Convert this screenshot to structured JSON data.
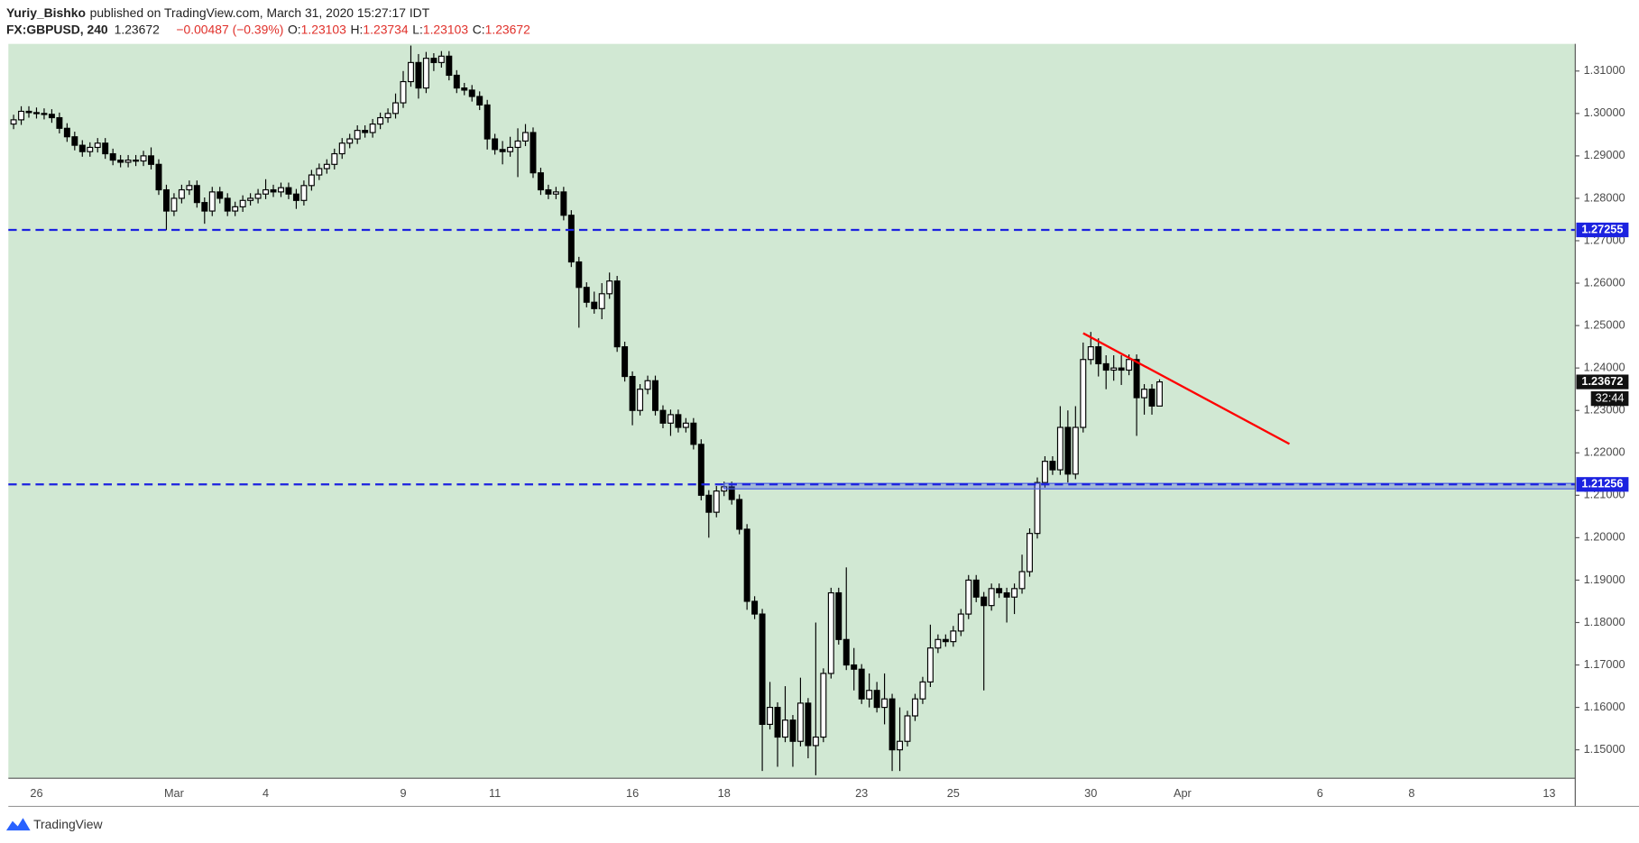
{
  "header": {
    "author": "Yuriy_Bishko",
    "published": "published on TradingView.com, March 31, 2020 15:27:17 IDT",
    "symbol": "FX:GBPUSD, 240",
    "last": "1.23672",
    "change": "−0.00487 (−0.39%)",
    "ohlc": [
      {
        "label": "O:",
        "value": "1.23103"
      },
      {
        "label": "H:",
        "value": "1.23734"
      },
      {
        "label": "L:",
        "value": "1.23103"
      },
      {
        "label": "C:",
        "value": "1.23672"
      }
    ]
  },
  "footer": {
    "brand": "TradingView"
  },
  "chart_data": {
    "type": "candlestick",
    "categories": [
      null,
      null,
      null,
      "26",
      null,
      null,
      null,
      null,
      null,
      null,
      null,
      null,
      null,
      null,
      null,
      null,
      null,
      null,
      null,
      null,
      null,
      "Mar",
      null,
      null,
      null,
      null,
      null,
      null,
      null,
      null,
      null,
      null,
      null,
      "4",
      null,
      null,
      null,
      null,
      null,
      null,
      null,
      null,
      null,
      null,
      null,
      null,
      null,
      null,
      null,
      null,
      null,
      "9",
      null,
      null,
      null,
      null,
      null,
      null,
      null,
      null,
      null,
      null,
      null,
      "11",
      null,
      null,
      null,
      null,
      null,
      null,
      null,
      null,
      null,
      null,
      null,
      null,
      null,
      null,
      null,
      null,
      null,
      "16",
      null,
      null,
      null,
      null,
      null,
      null,
      null,
      null,
      null,
      null,
      null,
      "18",
      null,
      null,
      null,
      null,
      null,
      null,
      null,
      null,
      null,
      null,
      null,
      null,
      null,
      null,
      null,
      null,
      null,
      "23",
      null,
      null,
      null,
      null,
      null,
      null,
      null,
      null,
      null,
      null,
      null,
      "25",
      null,
      null,
      null,
      null,
      null,
      null,
      null,
      null,
      null,
      null,
      null,
      null,
      null,
      null,
      null,
      null,
      null,
      "30",
      null,
      null,
      null,
      null,
      null,
      null,
      null,
      null,
      null,
      null,
      null,
      "Apr",
      null,
      null,
      null,
      null,
      null,
      null,
      null,
      null,
      null,
      null,
      null,
      null,
      null,
      null,
      null,
      null,
      null,
      "6",
      null,
      null,
      null,
      null,
      null,
      null,
      null,
      null,
      null,
      null,
      null,
      "8",
      null,
      null,
      null,
      null,
      null,
      null,
      null,
      null,
      null,
      null,
      null,
      null,
      null,
      null,
      null,
      null,
      null,
      "13",
      null,
      null,
      null
    ],
    "open": [
      1.2975,
      1.2985,
      1.3005,
      1.3002,
      1.3,
      1.2998,
      1.299,
      1.2965,
      1.2945,
      1.2925,
      1.291,
      1.292,
      1.293,
      1.2905,
      1.289,
      1.2885,
      1.289,
      1.2888,
      1.29,
      1.288,
      1.282,
      1.277,
      1.28,
      1.282,
      1.283,
      1.279,
      1.277,
      1.2815,
      1.28,
      1.277,
      1.278,
      1.2795,
      1.28,
      1.281,
      1.282,
      1.2815,
      1.2825,
      1.281,
      1.2795,
      1.283,
      1.2855,
      1.287,
      1.288,
      1.2905,
      1.293,
      1.294,
      1.296,
      1.2955,
      1.2975,
      1.299,
      1.3,
      1.3025,
      1.3075,
      1.312,
      1.306,
      1.313,
      1.312,
      1.3135,
      1.309,
      1.306,
      1.3055,
      1.304,
      1.302,
      1.294,
      1.2915,
      1.291,
      1.292,
      1.2935,
      1.2955,
      1.286,
      1.282,
      1.281,
      1.2815,
      1.276,
      1.265,
      1.259,
      1.2555,
      1.254,
      1.2575,
      1.2605,
      1.245,
      1.238,
      1.23,
      1.235,
      1.237,
      1.23,
      1.227,
      1.229,
      1.226,
      1.227,
      1.222,
      1.21,
      1.206,
      1.211,
      1.212,
      1.209,
      1.202,
      1.185,
      1.182,
      1.156,
      1.16,
      1.153,
      1.157,
      1.152,
      1.161,
      1.151,
      1.153,
      1.168,
      1.187,
      1.176,
      1.17,
      1.169,
      1.162,
      1.164,
      1.16,
      1.162,
      1.15,
      1.152,
      1.158,
      1.162,
      1.166,
      1.174,
      1.176,
      1.1755,
      1.178,
      1.182,
      1.19,
      1.186,
      1.184,
      1.188,
      1.187,
      1.186,
      1.188,
      1.192,
      1.201,
      1.213,
      1.218,
      1.216,
      1.226,
      1.215,
      1.226,
      1.242,
      1.245,
      1.241,
      1.2395,
      1.24,
      1.2395,
      1.242,
      1.233,
      1.235,
      1.23103,
      null,
      null,
      null,
      null,
      null,
      null,
      null,
      null,
      null,
      null,
      null,
      null,
      null,
      null,
      null,
      null,
      null,
      null,
      null,
      null,
      null,
      null,
      null,
      null,
      null,
      null,
      null,
      null,
      null,
      null,
      null,
      null,
      null,
      null,
      null,
      null,
      null,
      null,
      null,
      null,
      null,
      null,
      null,
      null,
      null,
      null,
      null,
      null,
      null,
      null,
      null,
      null,
      null,
      null
    ],
    "high": [
      1.2997,
      1.3017,
      1.3017,
      1.3014,
      1.3012,
      1.301,
      1.3002,
      1.2977,
      1.2957,
      1.2937,
      1.2932,
      1.2942,
      1.2942,
      1.2917,
      1.2902,
      1.2902,
      1.2902,
      1.2912,
      1.292,
      1.2892,
      1.2832,
      1.2812,
      1.2832,
      1.2842,
      1.2842,
      1.2802,
      1.2827,
      1.2827,
      1.2812,
      1.2792,
      1.2807,
      1.2812,
      1.2822,
      1.2845,
      1.2832,
      1.2837,
      1.2837,
      1.2822,
      1.2842,
      1.2867,
      1.2882,
      1.2892,
      1.2917,
      1.2942,
      1.2952,
      1.2972,
      1.2972,
      1.2987,
      1.3002,
      1.3012,
      1.3047,
      1.31,
      1.316,
      1.314,
      1.3145,
      1.3142,
      1.3147,
      1.3147,
      1.3102,
      1.3072,
      1.3067,
      1.3052,
      1.3032,
      1.2952,
      1.2935,
      1.2945,
      1.2965,
      1.2975,
      1.2967,
      1.2872,
      1.2832,
      1.2827,
      1.2827,
      1.2772,
      1.2662,
      1.2602,
      1.258,
      1.26,
      1.2625,
      1.2617,
      1.2462,
      1.2392,
      1.2362,
      1.2382,
      1.2382,
      1.2312,
      1.2302,
      1.2302,
      1.2282,
      1.2282,
      1.2232,
      1.2112,
      1.2122,
      1.2132,
      1.2132,
      1.2102,
      1.2032,
      1.1862,
      1.1832,
      1.166,
      1.1612,
      1.165,
      1.1582,
      1.167,
      1.1622,
      1.18,
      1.1692,
      1.1882,
      1.1882,
      1.193,
      1.174,
      1.1702,
      1.168,
      1.166,
      1.168,
      1.1632,
      1.16,
      1.1592,
      1.1632,
      1.1672,
      1.1795,
      1.1772,
      1.1772,
      1.1792,
      1.1832,
      1.1912,
      1.1912,
      1.1872,
      1.1892,
      1.1892,
      1.1882,
      1.1892,
      1.196,
      1.2022,
      1.2142,
      1.2192,
      1.2192,
      1.231,
      1.23,
      1.231,
      1.246,
      1.2485,
      1.247,
      1.243,
      1.243,
      1.243,
      1.2432,
      1.2432,
      1.2362,
      1.2362,
      1.23734,
      null,
      null,
      null,
      null,
      null,
      null,
      null,
      null,
      null,
      null,
      null,
      null,
      null,
      null,
      null,
      null,
      null,
      null,
      null,
      null,
      null,
      null,
      null,
      null,
      null,
      null,
      null,
      null,
      null,
      null,
      null,
      null,
      null,
      null,
      null,
      null,
      null,
      null,
      null,
      null,
      null,
      null,
      null,
      null,
      null,
      null,
      null,
      null,
      null,
      null,
      null,
      null,
      null,
      null
    ],
    "low": [
      1.2963,
      1.2973,
      1.299,
      1.2988,
      1.2986,
      1.2978,
      1.2953,
      1.2933,
      1.2913,
      1.2898,
      1.2898,
      1.2908,
      1.2893,
      1.2878,
      1.2873,
      1.2873,
      1.2876,
      1.2876,
      1.2868,
      1.2808,
      1.2725,
      1.2758,
      1.2788,
      1.2808,
      1.2778,
      1.274,
      1.2758,
      1.2788,
      1.2758,
      1.2758,
      1.2768,
      1.2783,
      1.2788,
      1.2798,
      1.2803,
      1.2803,
      1.2798,
      1.2775,
      1.2783,
      1.2818,
      1.2843,
      1.2858,
      1.2868,
      1.2893,
      1.2918,
      1.2928,
      1.2943,
      1.2943,
      1.2963,
      1.2978,
      1.2988,
      1.3013,
      1.3063,
      1.3035,
      1.3048,
      1.31,
      1.3108,
      1.3078,
      1.3048,
      1.3043,
      1.3028,
      1.3008,
      1.2915,
      1.2903,
      1.288,
      1.2898,
      1.285,
      1.2923,
      1.2848,
      1.2808,
      1.2798,
      1.2798,
      1.2748,
      1.2638,
      1.2495,
      1.2543,
      1.2528,
      1.2515,
      1.2563,
      1.2438,
      1.2368,
      1.2265,
      1.2288,
      1.2338,
      1.2288,
      1.2258,
      1.224,
      1.2248,
      1.2248,
      1.2208,
      1.2088,
      1.2,
      1.2048,
      1.2098,
      1.2078,
      1.2008,
      1.183,
      1.1808,
      1.145,
      1.1548,
      1.146,
      1.1518,
      1.146,
      1.1508,
      1.148,
      1.144,
      1.1518,
      1.1668,
      1.1748,
      1.1688,
      1.164,
      1.1608,
      1.16,
      1.1588,
      1.156,
      1.145,
      1.145,
      1.1508,
      1.1568,
      1.1608,
      1.1648,
      1.1728,
      1.1743,
      1.1743,
      1.1768,
      1.1808,
      1.1848,
      1.164,
      1.1828,
      1.1858,
      1.18,
      1.182,
      1.1868,
      1.1908,
      1.1998,
      1.2118,
      1.2148,
      1.2148,
      1.213,
      1.2138,
      1.2248,
      1.2408,
      1.238,
      1.235,
      1.237,
      1.236,
      1.2383,
      1.224,
      1.229,
      1.229,
      1.23103,
      null,
      null,
      null,
      null,
      null,
      null,
      null,
      null,
      null,
      null,
      null,
      null,
      null,
      null,
      null,
      null,
      null,
      null,
      null,
      null,
      null,
      null,
      null,
      null,
      null,
      null,
      null,
      null,
      null,
      null,
      null,
      null,
      null,
      null,
      null,
      null,
      null,
      null,
      null,
      null,
      null,
      null,
      null,
      null,
      null,
      null,
      null,
      null,
      null,
      null,
      null,
      null,
      null,
      null
    ],
    "close": [
      1.2985,
      1.3005,
      1.3002,
      1.3,
      1.2998,
      1.299,
      1.2965,
      1.2945,
      1.2925,
      1.291,
      1.292,
      1.293,
      1.2905,
      1.289,
      1.2885,
      1.289,
      1.2888,
      1.29,
      1.288,
      1.282,
      1.277,
      1.28,
      1.282,
      1.283,
      1.279,
      1.277,
      1.2815,
      1.28,
      1.277,
      1.278,
      1.2795,
      1.28,
      1.281,
      1.282,
      1.2815,
      1.2825,
      1.281,
      1.2795,
      1.283,
      1.2855,
      1.287,
      1.288,
      1.2905,
      1.293,
      1.294,
      1.296,
      1.2955,
      1.2975,
      1.299,
      1.3,
      1.3025,
      1.3075,
      1.312,
      1.306,
      1.313,
      1.312,
      1.3135,
      1.309,
      1.306,
      1.3055,
      1.304,
      1.302,
      1.294,
      1.2915,
      1.291,
      1.292,
      1.2935,
      1.2955,
      1.286,
      1.282,
      1.281,
      1.2815,
      1.276,
      1.265,
      1.259,
      1.2555,
      1.254,
      1.2575,
      1.2605,
      1.245,
      1.238,
      1.23,
      1.235,
      1.237,
      1.23,
      1.227,
      1.229,
      1.226,
      1.227,
      1.222,
      1.21,
      1.206,
      1.211,
      1.212,
      1.209,
      1.202,
      1.185,
      1.182,
      1.156,
      1.16,
      1.153,
      1.157,
      1.152,
      1.161,
      1.151,
      1.153,
      1.168,
      1.187,
      1.176,
      1.17,
      1.169,
      1.162,
      1.164,
      1.16,
      1.162,
      1.15,
      1.152,
      1.158,
      1.162,
      1.166,
      1.174,
      1.176,
      1.1755,
      1.178,
      1.182,
      1.19,
      1.186,
      1.184,
      1.188,
      1.187,
      1.186,
      1.188,
      1.192,
      1.201,
      1.213,
      1.218,
      1.216,
      1.226,
      1.215,
      1.226,
      1.242,
      1.245,
      1.241,
      1.2395,
      1.24,
      1.2395,
      1.242,
      1.233,
      1.235,
      1.23103,
      1.23672,
      null,
      null,
      null,
      null,
      null,
      null,
      null,
      null,
      null,
      null,
      null,
      null,
      null,
      null,
      null,
      null,
      null,
      null,
      null,
      null,
      null,
      null,
      null,
      null,
      null,
      null,
      null,
      null,
      null,
      null,
      null,
      null,
      null,
      null,
      null,
      null,
      null,
      null,
      null,
      null,
      null,
      null,
      null,
      null,
      null,
      null,
      null,
      null,
      null,
      null,
      null,
      null,
      null,
      null
    ],
    "up_color": "#ffffff",
    "down_color": "#000000",
    "wick_color": "#000000",
    "ylim": [
      1.1433,
      1.3164
    ],
    "yticks": [
      {
        "value": 1.15,
        "label": "1.15000"
      },
      {
        "value": 1.16,
        "label": "1.16000"
      },
      {
        "value": 1.17,
        "label": "1.17000"
      },
      {
        "value": 1.18,
        "label": "1.18000"
      },
      {
        "value": 1.19,
        "label": "1.19000"
      },
      {
        "value": 1.2,
        "label": "1.20000"
      },
      {
        "value": 1.21,
        "label": "1.21000"
      },
      {
        "value": 1.22,
        "label": "1.22000"
      },
      {
        "value": 1.23,
        "label": "1.23000"
      },
      {
        "value": 1.24,
        "label": "1.24000"
      },
      {
        "value": 1.25,
        "label": "1.25000"
      },
      {
        "value": 1.26,
        "label": "1.26000"
      },
      {
        "value": 1.27,
        "label": "1.27000"
      },
      {
        "value": 1.28,
        "label": "1.28000"
      },
      {
        "value": 1.29,
        "label": "1.29000"
      },
      {
        "value": 1.3,
        "label": "1.30000"
      },
      {
        "value": 1.31,
        "label": "1.31000"
      }
    ],
    "grid": false,
    "horizontal_lines": [
      {
        "value": 1.27255,
        "color": "#1c22e0"
      },
      {
        "value": 1.21256,
        "color": "#1c22e0"
      }
    ],
    "zone": {
      "start": 93,
      "top": 1.2128,
      "bottom": 1.2115,
      "color": "#4b5fe0"
    },
    "trendline": {
      "x": [
        140,
        167
      ],
      "y": [
        1.2482,
        1.2221
      ],
      "color": "#ff0000"
    },
    "countdown": "32:44"
  }
}
